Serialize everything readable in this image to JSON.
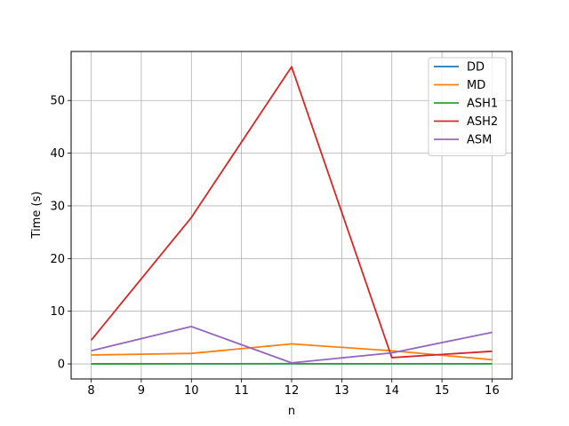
{
  "chart_data": {
    "type": "line",
    "xlabel": "n",
    "ylabel": "Time (s)",
    "x": [
      8,
      10,
      12,
      14,
      16
    ],
    "xlim": [
      7.6,
      16.4
    ],
    "ylim": [
      -2.85,
      59.3
    ],
    "xticks": [
      8,
      9,
      10,
      11,
      12,
      13,
      14,
      15,
      16
    ],
    "yticks": [
      0,
      10,
      20,
      30,
      40,
      50
    ],
    "grid": true,
    "legend_position": "top-right",
    "series": [
      {
        "name": "DD",
        "color": "#1f77b4",
        "values": [
          0.02,
          0.03,
          0.03,
          0.03,
          0.03
        ]
      },
      {
        "name": "MD",
        "color": "#ff7f0e",
        "values": [
          1.7,
          2.0,
          3.8,
          2.5,
          0.8
        ]
      },
      {
        "name": "ASH1",
        "color": "#2ca02c",
        "values": [
          0.02,
          0.03,
          0.05,
          0.03,
          0.03
        ]
      },
      {
        "name": "ASH2",
        "color": "#d62728",
        "values": [
          4.5,
          27.8,
          56.4,
          1.2,
          2.4
        ]
      },
      {
        "name": "ASM",
        "color": "#9467bd",
        "values": [
          2.5,
          7.1,
          0.2,
          2.1,
          6.0
        ]
      }
    ]
  }
}
